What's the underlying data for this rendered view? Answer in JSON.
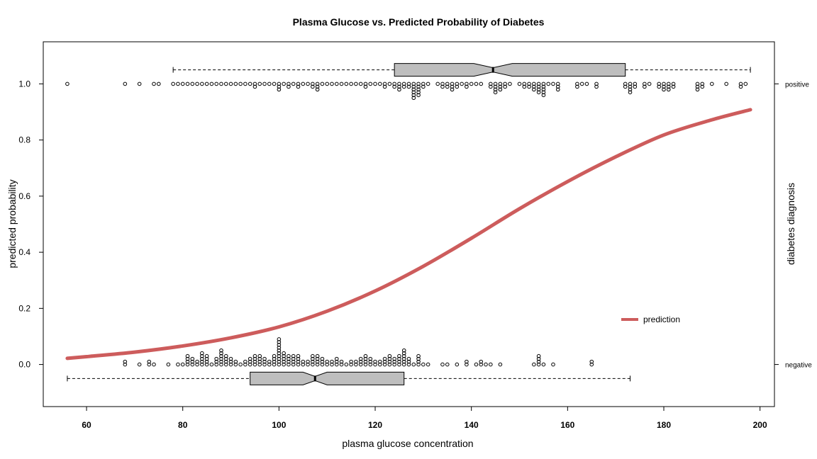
{
  "chart_data": {
    "type": "scatter",
    "title": "Plasma Glucose vs. Predicted Probability of Diabetes",
    "xlabel": "plasma glucose concentration",
    "ylabel": "predicted probability",
    "ylabel_right": "diabetes diagnosis",
    "xlim": [
      51,
      203
    ],
    "ylim": [
      -0.15,
      1.15
    ],
    "x_ticks": [
      "60",
      "80",
      "100",
      "120",
      "140",
      "160",
      "180",
      "200"
    ],
    "y_ticks": [
      "0.0",
      "0.2",
      "0.4",
      "0.6",
      "0.8",
      "1.0"
    ],
    "right_ticks": [
      {
        "value": 0,
        "label": "negative"
      },
      {
        "value": 1,
        "label": "positive"
      }
    ],
    "legend": {
      "label": "prediction",
      "position": "bottom-right",
      "color": "#cd5c5c"
    },
    "prediction_curve": {
      "color": "#cd5c5c",
      "x": [
        56,
        60,
        70,
        80,
        90,
        100,
        110,
        120,
        130,
        140,
        150,
        160,
        170,
        180,
        190,
        198
      ],
      "y": [
        0.022,
        0.028,
        0.044,
        0.066,
        0.095,
        0.134,
        0.19,
        0.262,
        0.35,
        0.45,
        0.555,
        0.652,
        0.74,
        0.818,
        0.872,
        0.908
      ]
    },
    "positive_points": {
      "stack_step": 0.01,
      "stacks": [
        [
          56,
          1
        ],
        [
          68,
          1
        ],
        [
          71,
          1
        ],
        [
          74,
          1
        ],
        [
          75,
          1
        ],
        [
          78,
          1
        ],
        [
          79,
          1
        ],
        [
          80,
          1
        ],
        [
          81,
          1
        ],
        [
          82,
          1
        ],
        [
          83,
          1
        ],
        [
          84,
          1
        ],
        [
          85,
          1
        ],
        [
          86,
          1
        ],
        [
          87,
          1
        ],
        [
          88,
          1
        ],
        [
          89,
          1
        ],
        [
          90,
          1
        ],
        [
          91,
          1
        ],
        [
          92,
          1
        ],
        [
          93,
          1
        ],
        [
          94,
          1
        ],
        [
          95,
          2
        ],
        [
          96,
          1
        ],
        [
          97,
          1
        ],
        [
          98,
          1
        ],
        [
          99,
          1
        ],
        [
          100,
          3
        ],
        [
          101,
          1
        ],
        [
          102,
          2
        ],
        [
          103,
          1
        ],
        [
          104,
          2
        ],
        [
          105,
          1
        ],
        [
          106,
          1
        ],
        [
          107,
          2
        ],
        [
          108,
          3
        ],
        [
          109,
          1
        ],
        [
          110,
          1
        ],
        [
          111,
          1
        ],
        [
          112,
          1
        ],
        [
          113,
          1
        ],
        [
          114,
          1
        ],
        [
          115,
          1
        ],
        [
          116,
          1
        ],
        [
          117,
          1
        ],
        [
          118,
          2
        ],
        [
          119,
          1
        ],
        [
          120,
          1
        ],
        [
          121,
          1
        ],
        [
          122,
          2
        ],
        [
          123,
          1
        ],
        [
          124,
          2
        ],
        [
          125,
          3
        ],
        [
          126,
          2
        ],
        [
          127,
          2
        ],
        [
          128,
          6
        ],
        [
          129,
          5
        ],
        [
          130,
          2
        ],
        [
          131,
          1
        ],
        [
          133,
          1
        ],
        [
          134,
          2
        ],
        [
          135,
          2
        ],
        [
          136,
          3
        ],
        [
          137,
          2
        ],
        [
          138,
          1
        ],
        [
          139,
          2
        ],
        [
          140,
          1
        ],
        [
          141,
          1
        ],
        [
          142,
          1
        ],
        [
          144,
          2
        ],
        [
          145,
          4
        ],
        [
          146,
          3
        ],
        [
          147,
          2
        ],
        [
          148,
          1
        ],
        [
          150,
          1
        ],
        [
          151,
          2
        ],
        [
          152,
          2
        ],
        [
          153,
          3
        ],
        [
          154,
          4
        ],
        [
          155,
          5
        ],
        [
          156,
          1
        ],
        [
          157,
          1
        ],
        [
          158,
          3
        ],
        [
          162,
          2
        ],
        [
          163,
          1
        ],
        [
          164,
          1
        ],
        [
          166,
          2
        ],
        [
          172,
          2
        ],
        [
          173,
          4
        ],
        [
          174,
          2
        ],
        [
          176,
          2
        ],
        [
          177,
          1
        ],
        [
          179,
          2
        ],
        [
          180,
          3
        ],
        [
          181,
          3
        ],
        [
          182,
          2
        ],
        [
          187,
          3
        ],
        [
          188,
          2
        ],
        [
          190,
          1
        ],
        [
          193,
          1
        ],
        [
          196,
          2
        ],
        [
          197,
          1
        ]
      ]
    },
    "negative_points": {
      "stack_step": 0.01,
      "stacks": [
        [
          68,
          2
        ],
        [
          71,
          1
        ],
        [
          73,
          2
        ],
        [
          74,
          1
        ],
        [
          77,
          1
        ],
        [
          79,
          1
        ],
        [
          80,
          1
        ],
        [
          81,
          4
        ],
        [
          82,
          3
        ],
        [
          83,
          2
        ],
        [
          84,
          5
        ],
        [
          85,
          4
        ],
        [
          86,
          1
        ],
        [
          87,
          3
        ],
        [
          88,
          6
        ],
        [
          89,
          4
        ],
        [
          90,
          3
        ],
        [
          91,
          2
        ],
        [
          92,
          1
        ],
        [
          93,
          2
        ],
        [
          94,
          3
        ],
        [
          95,
          4
        ],
        [
          96,
          4
        ],
        [
          97,
          3
        ],
        [
          98,
          2
        ],
        [
          99,
          4
        ],
        [
          100,
          10
        ],
        [
          101,
          5
        ],
        [
          102,
          4
        ],
        [
          103,
          4
        ],
        [
          104,
          4
        ],
        [
          105,
          2
        ],
        [
          106,
          2
        ],
        [
          107,
          4
        ],
        [
          108,
          4
        ],
        [
          109,
          3
        ],
        [
          110,
          2
        ],
        [
          111,
          2
        ],
        [
          112,
          3
        ],
        [
          113,
          2
        ],
        [
          114,
          1
        ],
        [
          115,
          2
        ],
        [
          116,
          2
        ],
        [
          117,
          3
        ],
        [
          118,
          4
        ],
        [
          119,
          3
        ],
        [
          120,
          2
        ],
        [
          121,
          2
        ],
        [
          122,
          3
        ],
        [
          123,
          4
        ],
        [
          124,
          3
        ],
        [
          125,
          4
        ],
        [
          126,
          6
        ],
        [
          127,
          3
        ],
        [
          128,
          1
        ],
        [
          129,
          4
        ],
        [
          130,
          1
        ],
        [
          131,
          1
        ],
        [
          134,
          1
        ],
        [
          135,
          1
        ],
        [
          137,
          1
        ],
        [
          139,
          2
        ],
        [
          141,
          1
        ],
        [
          142,
          2
        ],
        [
          143,
          1
        ],
        [
          144,
          1
        ],
        [
          146,
          1
        ],
        [
          153,
          1
        ],
        [
          154,
          4
        ],
        [
          155,
          1
        ],
        [
          157,
          1
        ],
        [
          165,
          2
        ]
      ]
    },
    "boxplot_positive": {
      "y_center": 1.05,
      "whisker_low": 78,
      "q1": 124,
      "notch_low": 140.5,
      "median": 144.5,
      "notch_high": 148.5,
      "q3": 172,
      "whisker_high": 198
    },
    "boxplot_negative": {
      "y_center": -0.05,
      "whisker_low": 56,
      "q1": 94,
      "notch_low": 105,
      "median": 107.5,
      "notch_high": 110,
      "q3": 126,
      "whisker_high": 173
    },
    "grid": false
  }
}
